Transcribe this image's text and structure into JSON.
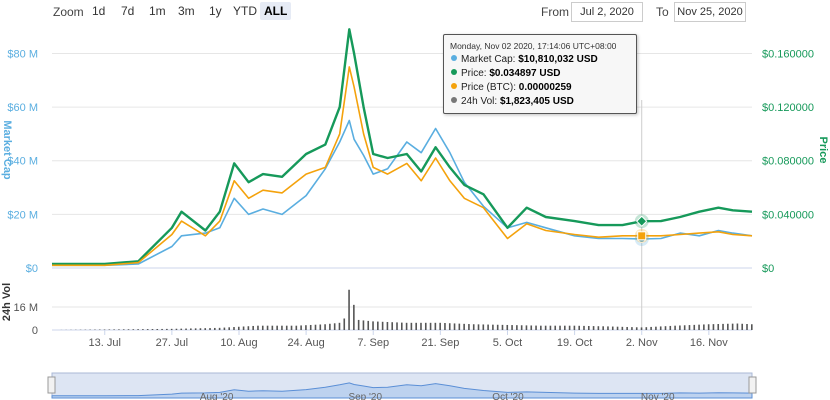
{
  "toolbar": {
    "zoom_label": "Zoom",
    "zoom_buttons": [
      "1d",
      "7d",
      "1m",
      "3m",
      "1y",
      "YTD",
      "ALL"
    ],
    "active_zoom": "ALL",
    "from_label": "From",
    "from_value": "Jul 2, 2020",
    "to_label": "To",
    "to_value": "Nov 25, 2020"
  },
  "tooltip": {
    "header": "Monday, Nov 02 2020, 17:14:06 UTC+08:00",
    "rows": [
      {
        "label": "Market Cap:",
        "value": "$10,810,032 USD",
        "color": "#5aaee0"
      },
      {
        "label": "Price:",
        "value": "$0.034897 USD",
        "color": "#16995a"
      },
      {
        "label": "Price (BTC):",
        "value": "0.00000259",
        "color": "#f4a20c"
      },
      {
        "label": "24h Vol:",
        "value": "$1,823,405 USD",
        "color": "#777777"
      }
    ]
  },
  "navigator": {
    "labels": [
      "Aug '20",
      "Sep '20",
      "Oct '20",
      "Nov '20"
    ]
  },
  "chart_data": {
    "type": "line",
    "x_tick_labels": [
      "13. Jul",
      "27. Jul",
      "10. Aug",
      "24. Aug",
      "7. Sep",
      "21. Sep",
      "5. Oct",
      "19. Oct",
      "2. Nov",
      "16. Nov"
    ],
    "x_ticks": [
      "2020-07-13",
      "2020-07-27",
      "2020-08-10",
      "2020-08-24",
      "2020-09-07",
      "2020-09-21",
      "2020-10-05",
      "2020-10-19",
      "2020-11-02",
      "2020-11-16"
    ],
    "x_range": [
      "2020-07-02",
      "2020-11-25"
    ],
    "crosshair_date": "2020-11-02",
    "left_axis": {
      "label": "Market Cap",
      "tick_labels": [
        "$0",
        "$20 M",
        "$40 M",
        "$60 M",
        "$80 M"
      ],
      "ticks": [
        0,
        20,
        40,
        60,
        80
      ],
      "range": [
        0,
        88
      ],
      "unit": "M USD",
      "color": "#5aaee0"
    },
    "right_axis": {
      "label": "Price",
      "tick_labels": [
        "$0",
        "$0.040000",
        "$0.080000",
        "$0.120000",
        "$0.160000"
      ],
      "ticks": [
        0,
        0.04,
        0.08,
        0.12,
        0.16
      ],
      "range": [
        0,
        0.176
      ],
      "color": "#16995a"
    },
    "volume_axis": {
      "label": "24h Vol",
      "tick_labels": [
        "0",
        "16 M"
      ],
      "ticks": [
        0,
        16
      ],
      "range": [
        0,
        32
      ],
      "unit": "M USD"
    },
    "grid": true,
    "series": [
      {
        "name": "Market Cap",
        "axis": "left",
        "color": "#5aaee0",
        "x": [
          "2020-07-02",
          "2020-07-13",
          "2020-07-20",
          "2020-07-27",
          "2020-07-29",
          "2020-08-03",
          "2020-08-06",
          "2020-08-09",
          "2020-08-12",
          "2020-08-15",
          "2020-08-19",
          "2020-08-24",
          "2020-08-28",
          "2020-08-31",
          "2020-09-02",
          "2020-09-03",
          "2020-09-05",
          "2020-09-07",
          "2020-09-10",
          "2020-09-14",
          "2020-09-17",
          "2020-09-20",
          "2020-09-23",
          "2020-09-26",
          "2020-09-30",
          "2020-10-05",
          "2020-10-09",
          "2020-10-13",
          "2020-10-19",
          "2020-10-24",
          "2020-10-29",
          "2020-11-02",
          "2020-11-06",
          "2020-11-10",
          "2020-11-14",
          "2020-11-18",
          "2020-11-21",
          "2020-11-25"
        ],
        "values": [
          1,
          1,
          1.5,
          8,
          12,
          13,
          15,
          26,
          20,
          22,
          20,
          27,
          37,
          47,
          55,
          48,
          42,
          35,
          37,
          47,
          43,
          52,
          43,
          32,
          23,
          15,
          17,
          15,
          12,
          11,
          11,
          10.8,
          11,
          13,
          12,
          14,
          13,
          12
        ]
      },
      {
        "name": "Price",
        "axis": "right",
        "color": "#16995a",
        "x": [
          "2020-07-02",
          "2020-07-13",
          "2020-07-20",
          "2020-07-27",
          "2020-07-29",
          "2020-08-03",
          "2020-08-06",
          "2020-08-09",
          "2020-08-12",
          "2020-08-15",
          "2020-08-19",
          "2020-08-24",
          "2020-08-28",
          "2020-08-31",
          "2020-09-02",
          "2020-09-03",
          "2020-09-05",
          "2020-09-07",
          "2020-09-10",
          "2020-09-14",
          "2020-09-17",
          "2020-09-20",
          "2020-09-23",
          "2020-09-26",
          "2020-09-30",
          "2020-10-05",
          "2020-10-09",
          "2020-10-13",
          "2020-10-19",
          "2020-10-24",
          "2020-10-29",
          "2020-11-02",
          "2020-11-06",
          "2020-11-10",
          "2020-11-14",
          "2020-11-18",
          "2020-11-21",
          "2020-11-25"
        ],
        "values": [
          0.003,
          0.003,
          0.005,
          0.03,
          0.042,
          0.028,
          0.042,
          0.078,
          0.064,
          0.07,
          0.068,
          0.085,
          0.092,
          0.12,
          0.178,
          0.16,
          0.12,
          0.085,
          0.082,
          0.085,
          0.072,
          0.09,
          0.075,
          0.062,
          0.055,
          0.03,
          0.045,
          0.038,
          0.035,
          0.032,
          0.032,
          0.034897,
          0.035,
          0.038,
          0.042,
          0.045,
          0.043,
          0.042
        ]
      },
      {
        "name": "Price (BTC)",
        "axis": "right",
        "color": "#f4a20c",
        "x": [
          "2020-07-02",
          "2020-07-13",
          "2020-07-20",
          "2020-07-27",
          "2020-07-29",
          "2020-08-03",
          "2020-08-06",
          "2020-08-09",
          "2020-08-12",
          "2020-08-15",
          "2020-08-19",
          "2020-08-24",
          "2020-08-28",
          "2020-08-31",
          "2020-09-02",
          "2020-09-03",
          "2020-09-05",
          "2020-09-07",
          "2020-09-10",
          "2020-09-14",
          "2020-09-17",
          "2020-09-20",
          "2020-09-23",
          "2020-09-26",
          "2020-09-30",
          "2020-10-05",
          "2020-10-09",
          "2020-10-13",
          "2020-10-19",
          "2020-10-24",
          "2020-10-29",
          "2020-11-02",
          "2020-11-06",
          "2020-11-10",
          "2020-11-14",
          "2020-11-18",
          "2020-11-21",
          "2020-11-25"
        ],
        "values": [
          0.002,
          0.002,
          0.004,
          0.025,
          0.035,
          0.024,
          0.035,
          0.065,
          0.052,
          0.058,
          0.056,
          0.07,
          0.075,
          0.1,
          0.15,
          0.135,
          0.1,
          0.075,
          0.07,
          0.078,
          0.065,
          0.082,
          0.065,
          0.052,
          0.045,
          0.022,
          0.033,
          0.028,
          0.025,
          0.023,
          0.024,
          0.024,
          0.024,
          0.025,
          0.026,
          0.027,
          0.025,
          0.024
        ]
      },
      {
        "name": "24h Vol",
        "axis": "volume",
        "color": "#555555",
        "x": [
          "2020-07-02",
          "2020-07-27",
          "2020-08-06",
          "2020-08-14",
          "2020-08-22",
          "2020-08-28",
          "2020-08-31",
          "2020-09-01",
          "2020-09-02",
          "2020-09-04",
          "2020-09-07",
          "2020-09-14",
          "2020-09-21",
          "2020-09-28",
          "2020-10-05",
          "2020-10-12",
          "2020-10-19",
          "2020-10-26",
          "2020-11-02",
          "2020-11-09",
          "2020-11-16",
          "2020-11-22",
          "2020-11-25"
        ],
        "values": [
          0,
          0.8,
          1.5,
          3,
          3,
          4,
          5,
          8,
          28,
          7,
          6,
          5,
          5,
          4,
          3.5,
          3,
          3,
          2.5,
          1.8,
          3,
          4,
          4.5,
          4
        ]
      }
    ]
  }
}
